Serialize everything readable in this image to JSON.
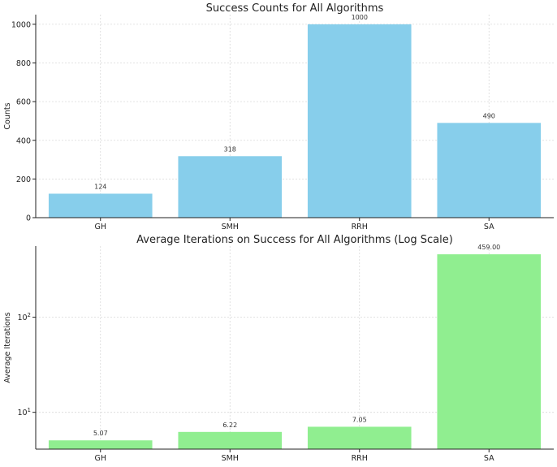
{
  "chart_data": [
    {
      "type": "bar",
      "title": "Success Counts for All Algorithms",
      "xlabel": "",
      "ylabel": "Counts",
      "categories": [
        "GH",
        "SMH",
        "RRH",
        "SA"
      ],
      "values": [
        124,
        318,
        1000,
        490
      ],
      "value_labels": [
        "124",
        "318",
        "1000",
        "490"
      ],
      "ylim": [
        0,
        1050
      ],
      "yticks": [
        0,
        200,
        400,
        600,
        800,
        1000
      ],
      "ytick_labels": [
        "0",
        "200",
        "400",
        "600",
        "800",
        "1000"
      ],
      "scale": "linear",
      "grid": true,
      "bar_color": "#87CEEB"
    },
    {
      "type": "bar",
      "title": "Average Iterations on Success for All Algorithms (Log Scale)",
      "xlabel": "",
      "ylabel": "Average Iterations",
      "categories": [
        "GH",
        "SMH",
        "RRH",
        "SA"
      ],
      "values": [
        5.07,
        6.22,
        7.05,
        459.0
      ],
      "value_labels": [
        "5.07",
        "6.22",
        "7.05",
        "459.00"
      ],
      "ylim": [
        4.1,
        560
      ],
      "yticks": [
        10,
        100
      ],
      "ytick_labels": [
        {
          "base": "10",
          "exp": "1"
        },
        {
          "base": "10",
          "exp": "2"
        }
      ],
      "scale": "log",
      "grid": true,
      "bar_color": "#90EE90"
    }
  ]
}
